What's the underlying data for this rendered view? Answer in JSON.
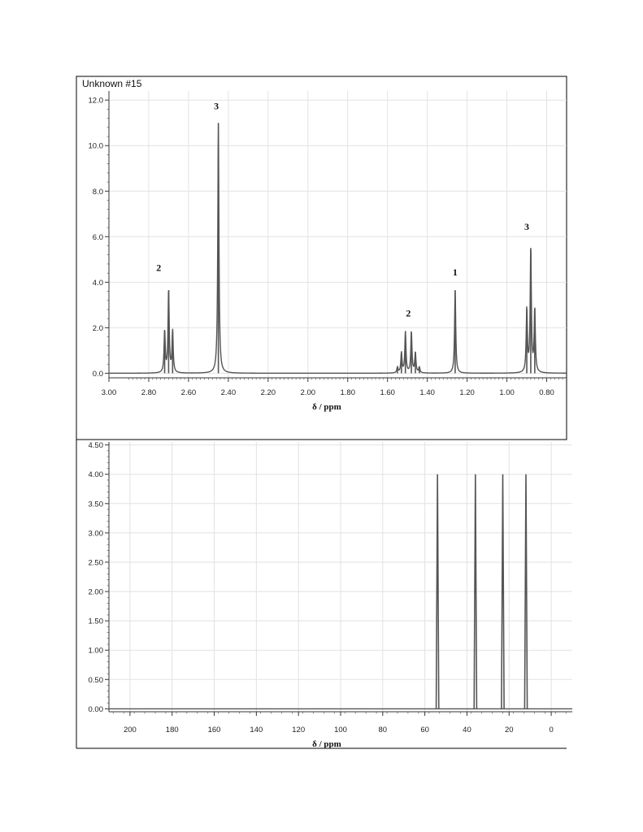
{
  "chart_data": [
    {
      "type": "line",
      "title": "Unknown #15",
      "xlabel": "δ / ppm",
      "ylabel": "",
      "x_reversed": true,
      "xlim": [
        3.0,
        0.7
      ],
      "ylim": [
        -0.2,
        12.4
      ],
      "grid": true,
      "x_ticks": [
        "3.00",
        "2.80",
        "2.60",
        "2.40",
        "2.20",
        "2.00",
        "1.80",
        "1.60",
        "1.40",
        "1.20",
        "1.00",
        "0.80"
      ],
      "y_ticks": [
        "0.0",
        "2.0",
        "4.0",
        "6.0",
        "8.0",
        "10.0",
        "12.0"
      ],
      "series": [
        {
          "peaks": [
            {
              "x": 2.72,
              "y": 1.85
            },
            {
              "x": 2.7,
              "y": 3.65
            },
            {
              "x": 2.68,
              "y": 1.85
            },
            {
              "x": 2.45,
              "y": 11.0
            },
            {
              "x": 1.55,
              "y": 0.25
            },
            {
              "x": 1.53,
              "y": 0.9
            },
            {
              "x": 1.51,
              "y": 1.8
            },
            {
              "x": 1.48,
              "y": 1.8
            },
            {
              "x": 1.46,
              "y": 0.9
            },
            {
              "x": 1.44,
              "y": 0.25
            },
            {
              "x": 1.26,
              "y": 3.65
            },
            {
              "x": 0.9,
              "y": 2.8
            },
            {
              "x": 0.88,
              "y": 5.5
            },
            {
              "x": 0.86,
              "y": 2.8
            }
          ]
        }
      ],
      "annotations": [
        {
          "text": "2",
          "x": 2.75,
          "y": 4.5
        },
        {
          "text": "3",
          "x": 2.46,
          "y": 11.6
        },
        {
          "text": "2",
          "x": 1.495,
          "y": 2.5
        },
        {
          "text": "1",
          "x": 1.26,
          "y": 4.3
        },
        {
          "text": "3",
          "x": 0.9,
          "y": 6.3
        }
      ]
    },
    {
      "type": "bar",
      "title": "",
      "xlabel": "δ / ppm",
      "ylabel": "",
      "x_reversed": true,
      "xlim": [
        210,
        -10
      ],
      "ylim": [
        -0.05,
        4.55
      ],
      "grid": true,
      "x_ticks": [
        "200",
        "180",
        "160",
        "140",
        "120",
        "100",
        "80",
        "60",
        "40",
        "20",
        "0"
      ],
      "y_ticks": [
        "0.00",
        "0.50",
        "1.00",
        "1.50",
        "2.00",
        "2.50",
        "3.00",
        "3.50",
        "4.00",
        "4.50"
      ],
      "series": [
        {
          "peaks": [
            {
              "x": 54,
              "y": 4.0
            },
            {
              "x": 36,
              "y": 4.0
            },
            {
              "x": 23,
              "y": 4.0
            },
            {
              "x": 12,
              "y": 4.0
            }
          ]
        }
      ]
    }
  ]
}
